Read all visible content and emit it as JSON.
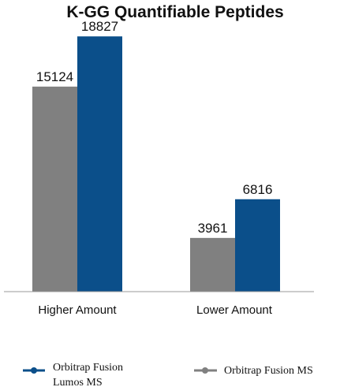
{
  "chart_data": {
    "type": "bar",
    "title": "K-GG Quantifiable Peptides",
    "categories": [
      "Higher Amount",
      "Lower Amount"
    ],
    "series": [
      {
        "name": "Orbitrap Fusion MS",
        "values": [
          15124,
          3961
        ],
        "color": "#808080",
        "labels": [
          "15124",
          "3961"
        ]
      },
      {
        "name": "Orbitrap Fusion Lumos MS",
        "values": [
          18827,
          6816
        ],
        "color": "#0b4f8a",
        "labels": [
          "18827",
          "6816"
        ]
      }
    ],
    "ylim": [
      0,
      20000
    ],
    "grid": false,
    "legend_position": "bottom"
  },
  "legend": {
    "lumos_line1": "Orbitrap Fusion",
    "lumos_line2": "Lumos MS",
    "fusion": "Orbitrap Fusion MS"
  }
}
